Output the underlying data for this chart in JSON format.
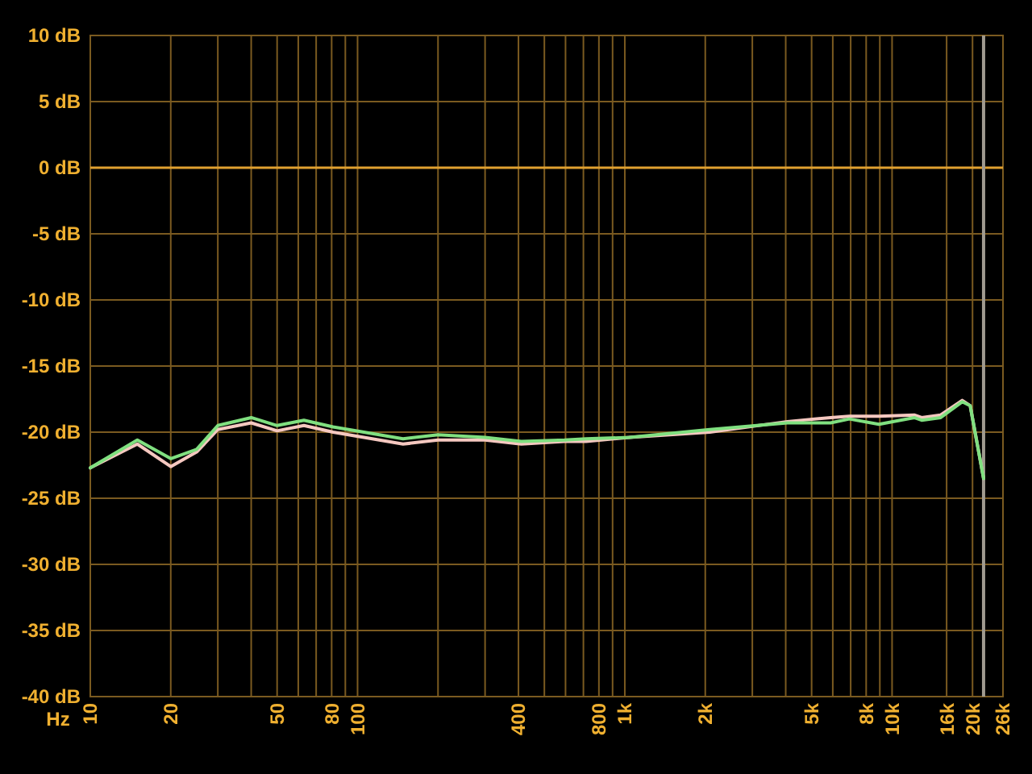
{
  "chart_data": {
    "type": "line",
    "xlabel": "Hz",
    "log": "x",
    "grid": true,
    "marker": "none",
    "line_style": "solid",
    "x": [
      10,
      15,
      20,
      25,
      30,
      40,
      50,
      63,
      81,
      148,
      200,
      300,
      410,
      595,
      716,
      1040,
      2080,
      4060,
      5890,
      6920,
      8930,
      12100,
      12900,
      15200,
      18300,
      19600,
      22000
    ],
    "series": [
      {
        "color": "#f5c8c0",
        "values": [
          -22.7,
          -20.9,
          -22.6,
          -21.5,
          -19.8,
          -19.3,
          -19.9,
          -19.5,
          -20.0,
          -20.9,
          -20.6,
          -20.6,
          -20.9,
          -20.7,
          -20.7,
          -20.4,
          -20.0,
          -19.2,
          -18.9,
          -18.8,
          -18.8,
          -18.7,
          -18.9,
          -18.7,
          -17.6,
          -18.0,
          -23.5
        ]
      },
      {
        "color": "#80e080",
        "values": [
          -22.7,
          -20.6,
          -22.0,
          -21.3,
          -19.5,
          -18.9,
          -19.5,
          -19.1,
          -19.6,
          -20.5,
          -20.2,
          -20.4,
          -20.7,
          -20.6,
          -20.5,
          -20.4,
          -19.8,
          -19.3,
          -19.3,
          -19.0,
          -19.4,
          -18.9,
          -19.1,
          -18.9,
          -17.7,
          -18.0,
          -23.5
        ]
      }
    ],
    "xlim": [
      10,
      26000
    ],
    "xticks": [
      10,
      20,
      {
        "value": 30,
        "label": null
      },
      {
        "value": 40,
        "label": null
      },
      50,
      {
        "value": 60,
        "label": null
      },
      {
        "value": 70,
        "label": null
      },
      80,
      {
        "value": 90,
        "label": null
      },
      100,
      {
        "value": 200,
        "label": null
      },
      {
        "value": 300,
        "label": null
      },
      400,
      {
        "value": 500,
        "label": null
      },
      {
        "value": 600,
        "label": null
      },
      {
        "value": 700,
        "label": null
      },
      800,
      {
        "value": 900,
        "label": null
      },
      {
        "value": 1000,
        "label": "1k"
      },
      {
        "value": 2000,
        "label": "2k"
      },
      {
        "value": 3000,
        "label": null
      },
      {
        "value": 4000,
        "label": null
      },
      {
        "value": 5000,
        "label": "5k"
      },
      {
        "value": 6000,
        "label": null
      },
      {
        "value": 7000,
        "label": null
      },
      {
        "value": 8000,
        "label": "8k"
      },
      {
        "value": 9000,
        "label": null
      },
      {
        "value": 10000,
        "label": "10k"
      },
      {
        "value": 16000,
        "label": "16k"
      },
      {
        "value": 20000,
        "label": "20k"
      },
      {
        "value": 26000,
        "label": "26k"
      }
    ],
    "ylim": [
      -40,
      10
    ],
    "yticks": [
      {
        "value": -40,
        "label": "-40 dB"
      },
      {
        "value": -35,
        "label": "-35 dB"
      },
      {
        "value": -30,
        "label": "-30 dB"
      },
      {
        "value": -25,
        "label": "-25 dB"
      },
      {
        "value": -20,
        "label": "-20 dB"
      },
      {
        "value": -15,
        "label": "-15 dB"
      },
      {
        "value": -10,
        "label": "-10 dB"
      },
      {
        "value": -5,
        "label": "-5 dB"
      },
      {
        "value": 0,
        "label": "0 dB"
      },
      {
        "value": 5,
        "label": "5 dB"
      },
      {
        "value": 10,
        "label": "10 dB"
      }
    ],
    "ref_lines": [
      {
        "axis": "y",
        "value": 0,
        "color": "#e0a030"
      },
      {
        "axis": "x",
        "value": 22000,
        "color": "#a09a90"
      }
    ]
  }
}
